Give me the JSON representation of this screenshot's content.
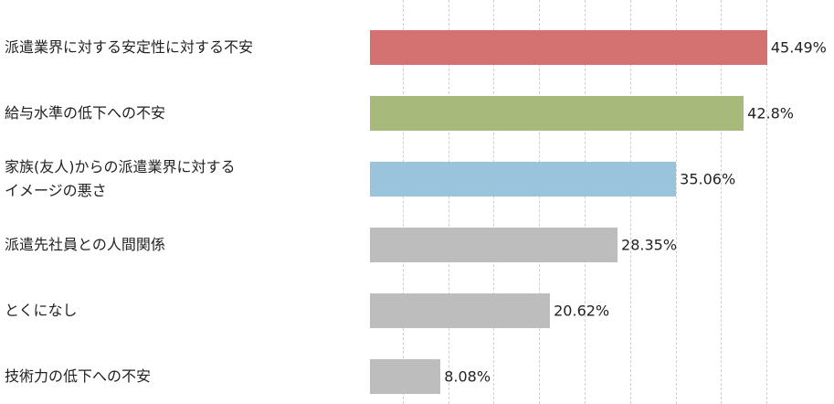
{
  "chart_data": {
    "type": "bar",
    "orientation": "horizontal",
    "categories": [
      "派遣業界に対する安定性に対する不安",
      "給与水準の低下への不安",
      "家族(友人)からの派遣業界に対する\nイメージの悪さ",
      "派遣先社員との人間関係",
      "とくになし",
      "技術力の低下への不安"
    ],
    "values": [
      45.49,
      42.8,
      35.06,
      28.35,
      20.62,
      8.08
    ],
    "value_labels": [
      "45.49%",
      "42.8%",
      "35.06%",
      "28.35%",
      "20.62%",
      "8.08%"
    ],
    "colors": [
      "#d47272",
      "#a8b97c",
      "#9ac4dc",
      "#bdbdbd",
      "#bdbdbd",
      "#bdbdbd"
    ],
    "xlim": [
      0,
      50
    ]
  }
}
